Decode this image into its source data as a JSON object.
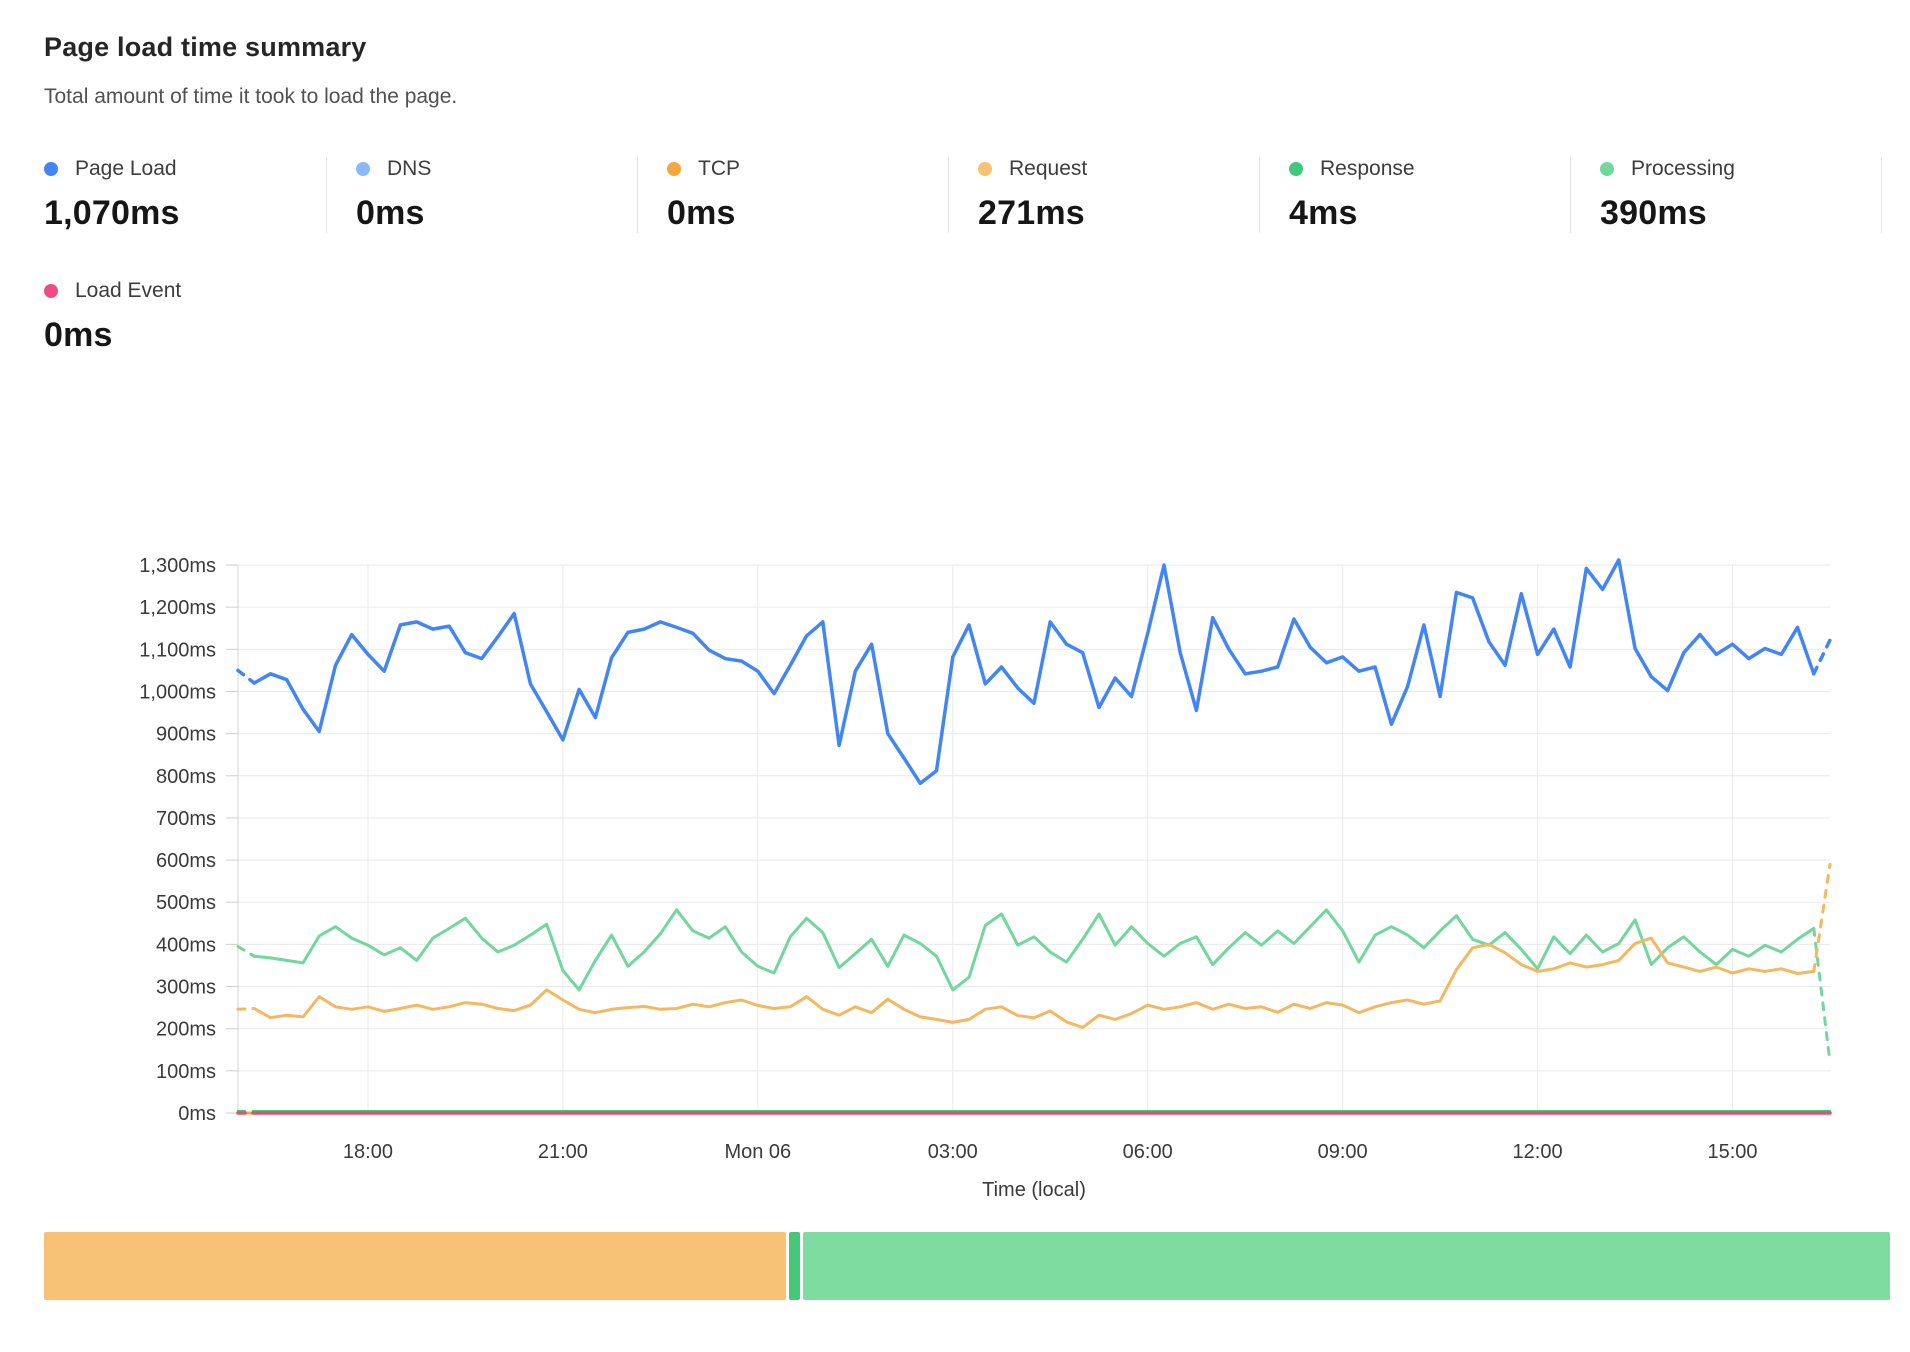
{
  "header": {
    "title": "Page load time summary",
    "subtitle": "Total amount of time it took to load the page."
  },
  "stats": [
    {
      "label": "Page Load",
      "value": "1,070ms",
      "color": "#4285f4"
    },
    {
      "label": "DNS",
      "value": "0ms",
      "color": "#8ab9f9"
    },
    {
      "label": "TCP",
      "value": "0ms",
      "color": "#f6a83c"
    },
    {
      "label": "Request",
      "value": "271ms",
      "color": "#f8c275"
    },
    {
      "label": "Response",
      "value": "4ms",
      "color": "#40c97d"
    },
    {
      "label": "Processing",
      "value": "390ms",
      "color": "#72d79d"
    }
  ],
  "load_event_stat": {
    "label": "Load Event",
    "value": "0ms",
    "color": "#ee4d84"
  },
  "chart_data": {
    "type": "line",
    "xlabel": "Time (local)",
    "y_axis": {
      "min": 0,
      "max": 1300,
      "step": 100,
      "unit": "ms"
    },
    "x_axis": {
      "start_hour": 16.0,
      "end_hour": 40.5,
      "interval_hours": 0.25,
      "ticks": [
        {
          "t": 18,
          "label": "18:00"
        },
        {
          "t": 21,
          "label": "21:00"
        },
        {
          "t": 24,
          "label": "Mon 06"
        },
        {
          "t": 27,
          "label": "03:00"
        },
        {
          "t": 30,
          "label": "06:00"
        },
        {
          "t": 33,
          "label": "09:00"
        },
        {
          "t": 36,
          "label": "12:00"
        },
        {
          "t": 39,
          "label": "15:00"
        }
      ],
      "grid": true
    },
    "series": [
      {
        "name": "DNS",
        "color": "#8ab9f9",
        "constant": 0
      },
      {
        "name": "TCP",
        "color": "#f6a83c",
        "constant": 0
      },
      {
        "name": "Response",
        "color": "#40c97d",
        "constant": 4,
        "dashed_head": true
      },
      {
        "name": "Processing",
        "color": "#72d79d",
        "dashed_head": true,
        "dashed_tail": true,
        "values": [
          395,
          372,
          368,
          362,
          356,
          420,
          442,
          415,
          398,
          375,
          392,
          362,
          415,
          438,
          462,
          415,
          382,
          398,
          422,
          448,
          338,
          292,
          362,
          422,
          348,
          382,
          425,
          482,
          432,
          415,
          442,
          382,
          348,
          332,
          418,
          462,
          428,
          345,
          378,
          412,
          348,
          422,
          402,
          372,
          292,
          322,
          445,
          472,
          398,
          418,
          382,
          358,
          412,
          472,
          398,
          442,
          402,
          372,
          402,
          418,
          352,
          392,
          428,
          398,
          432,
          402,
          442,
          482,
          432,
          358,
          422,
          442,
          422,
          392,
          432,
          468,
          412,
          398,
          428,
          388,
          342,
          418,
          378,
          422,
          382,
          402,
          458,
          352,
          392,
          418,
          382,
          352,
          388,
          372,
          398,
          382,
          412,
          438,
          120
        ]
      },
      {
        "name": "Request",
        "color": "#f4b860",
        "dashed_head": true,
        "dashed_tail": true,
        "values": [
          246,
          248,
          226,
          232,
          228,
          276,
          252,
          246,
          252,
          241,
          248,
          256,
          246,
          252,
          262,
          258,
          248,
          243,
          256,
          292,
          268,
          246,
          238,
          246,
          250,
          253,
          246,
          248,
          258,
          252,
          262,
          268,
          255,
          248,
          252,
          276,
          246,
          232,
          252,
          238,
          270,
          246,
          228,
          222,
          215,
          222,
          246,
          252,
          231,
          226,
          242,
          216,
          203,
          232,
          222,
          236,
          256,
          246,
          252,
          262,
          246,
          258,
          248,
          252,
          239,
          258,
          248,
          262,
          256,
          238,
          252,
          262,
          268,
          258,
          266,
          340,
          392,
          400,
          380,
          352,
          336,
          342,
          356,
          346,
          352,
          362,
          402,
          415,
          356,
          346,
          336,
          346,
          332,
          342,
          336,
          342,
          331,
          336,
          590
        ]
      },
      {
        "name": "Page Load",
        "color": "#4285f4",
        "dashed_head": true,
        "dashed_tail": true,
        "values": [
          1050,
          1020,
          1042,
          1028,
          958,
          905,
          1062,
          1135,
          1088,
          1048,
          1158,
          1165,
          1148,
          1155,
          1092,
          1078,
          1130,
          1185,
          1018,
          952,
          885,
          1005,
          938,
          1080,
          1140,
          1148,
          1165,
          1152,
          1138,
          1098,
          1078,
          1072,
          1048,
          995,
          1062,
          1132,
          1165,
          872,
          1048,
          1112,
          900,
          842,
          782,
          812,
          1082,
          1158,
          1018,
          1058,
          1008,
          972,
          1165,
          1112,
          1092,
          962,
          1032,
          988,
          1138,
          1300,
          1092,
          955,
          1175,
          1100,
          1042,
          1048,
          1058,
          1172,
          1105,
          1068,
          1082,
          1048,
          1058,
          922,
          1012,
          1158,
          988,
          1235,
          1222,
          1118,
          1062,
          1232,
          1088,
          1148,
          1058,
          1292,
          1242,
          1312,
          1102,
          1035,
          1002,
          1092,
          1135,
          1088,
          1112,
          1078,
          1102,
          1088,
          1152,
          1042,
          1122
        ]
      },
      {
        "name": "Load Event",
        "color": "#d95379",
        "constant": 0,
        "dashed_head": true
      }
    ]
  },
  "status_bar": {
    "segments": [
      {
        "name": "degraded-period",
        "color": "#f7c276",
        "fraction": 0.403
      },
      {
        "name": "marker",
        "color": "#47c878",
        "fraction": 0.006
      },
      {
        "name": "passing-period",
        "color": "#7edca1",
        "fraction": 0.591
      }
    ]
  }
}
